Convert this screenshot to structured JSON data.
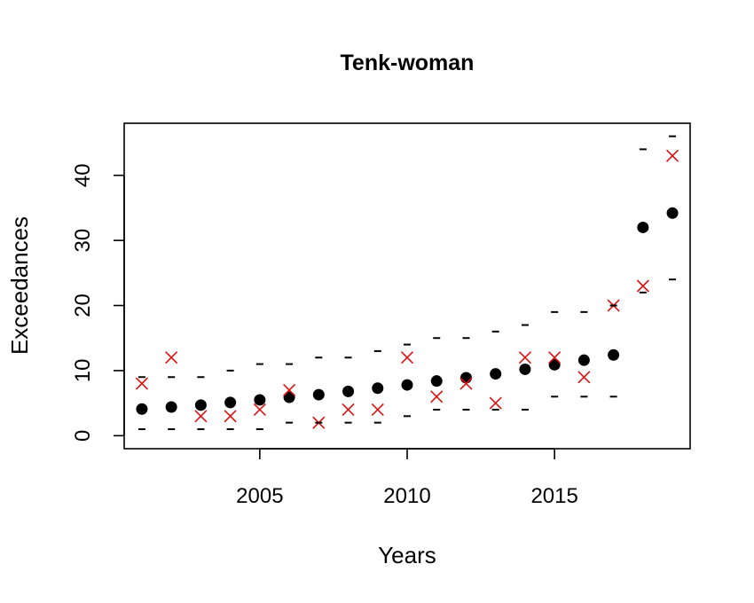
{
  "chart_data": {
    "type": "scatter",
    "title": "Tenk-woman",
    "xlabel": "Years",
    "ylabel": "Exceedances",
    "xlim": [
      2000.4,
      2019.6
    ],
    "ylim": [
      -2,
      48
    ],
    "x_ticks": [
      2005,
      2010,
      2015
    ],
    "y_ticks": [
      0,
      10,
      20,
      30,
      40
    ],
    "grid": false,
    "legend": "none",
    "x": [
      2001,
      2002,
      2003,
      2004,
      2005,
      2006,
      2007,
      2008,
      2009,
      2010,
      2011,
      2012,
      2013,
      2014,
      2015,
      2016,
      2017,
      2018,
      2019
    ],
    "series": [
      {
        "marker": "filled-circle",
        "color": "#000000",
        "values": [
          4.1,
          4.4,
          4.7,
          5.1,
          5.5,
          5.9,
          6.3,
          6.8,
          7.3,
          7.8,
          8.4,
          8.9,
          9.5,
          10.2,
          10.9,
          11.6,
          12.4,
          32.0,
          34.2
        ]
      },
      {
        "marker": "x-cross",
        "color": "#dd1111",
        "values": [
          8,
          12,
          3,
          3,
          4,
          7,
          2,
          4,
          4,
          12,
          6,
          8,
          5,
          12,
          12,
          9,
          20,
          23,
          43
        ]
      },
      {
        "marker": "dash",
        "color": "#000000",
        "values": [
          9,
          9,
          9,
          10,
          11,
          11,
          12,
          12,
          13,
          14,
          15,
          15,
          16,
          17,
          19,
          19,
          20,
          44,
          46
        ]
      },
      {
        "marker": "dash",
        "color": "#000000",
        "values": [
          1,
          1,
          1,
          1,
          1,
          2,
          2,
          2,
          2,
          3,
          4,
          4,
          4,
          4,
          6,
          6,
          6,
          22,
          24
        ]
      }
    ]
  }
}
